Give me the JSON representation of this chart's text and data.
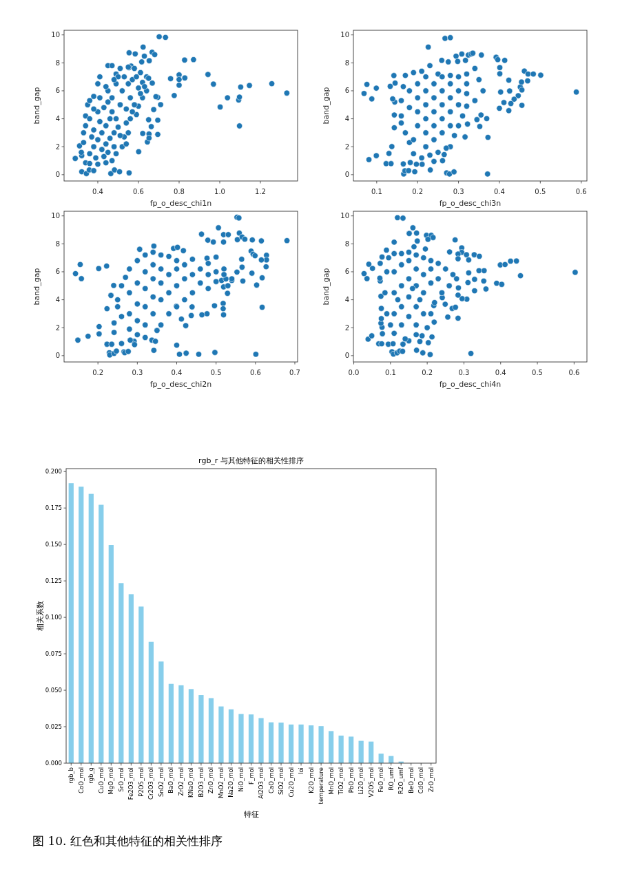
{
  "chart_data": [
    {
      "type": "scatter",
      "xlabel": "fp_o_desc_chi1n",
      "ylabel": "band_gap",
      "color": "#1f77b4",
      "marker": "circle",
      "xlim": [
        0.234,
        1.383
      ],
      "ylim": [
        -0.45,
        10.33
      ],
      "xticks": [
        0.4,
        0.6,
        0.8,
        {
          "value": 1,
          "label": "1.0"
        },
        1.2
      ],
      "yticks": [
        0,
        2,
        4,
        6,
        8,
        10
      ],
      "x": [
        0.289,
        0.31,
        0.321,
        0.319,
        0.321,
        0.344,
        0.358,
        0.38,
        0.464,
        0.482,
        0.507,
        0.554,
        0.702,
        0.733,
        0.623,
        0.554,
        0.584,
        0.629,
        0.667,
        0.68,
        0.653,
        0.616,
        0.564,
        0.553,
        0.827,
        0.871,
        0.758,
        0.8,
        0.8,
        0.8,
        0.828,
        0.776,
        0.942,
        0.969,
        1.002,
        1.038,
        1.093,
        1.097,
        1.103,
        1.097,
        1.146,
        1.256,
        1.33,
        0.601,
        0.663,
        0.644,
        0.652,
        0.652,
        0.621,
        0.695,
        0.695,
        0.675,
        0.65,
        0.668,
        0.695,
        0.709,
        0.686,
        0.34,
        0.36,
        0.4,
        0.44,
        0.47,
        0.49,
        0.52,
        0.54,
        0.53,
        0.55,
        0.33,
        0.33,
        0.34,
        0.34,
        0.35,
        0.36,
        0.38,
        0.4,
        0.41,
        0.45,
        0.47,
        0.49,
        0.51,
        0.55,
        0.58,
        0.61,
        0.64,
        0.65,
        0.64,
        0.62,
        0.6,
        0.59,
        0.56,
        0.54,
        0.36,
        0.38,
        0.4,
        0.42,
        0.44,
        0.46,
        0.38,
        0.36,
        0.4,
        0.42,
        0.44,
        0.46,
        0.48,
        0.5,
        0.39,
        0.43,
        0.45,
        0.48,
        0.37,
        0.41,
        0.43,
        0.45,
        0.38,
        0.41,
        0.47,
        0.49,
        0.51,
        0.45,
        0.47,
        0.49,
        0.51,
        0.52,
        0.53,
        0.55,
        0.56,
        0.57,
        0.58,
        0.6,
        0.62,
        0.59,
        0.54,
        0.5,
        0.48,
        0.44,
        0.57,
        0.61,
        0.63
      ],
      "values": [
        1.16,
        2.06,
        1.36,
        1.6,
        0.21,
        0.08,
        0.34,
        0.29,
        0.08,
        0.34,
        0.21,
        0.13,
        9.87,
        9.82,
        9.13,
        8.72,
        8.64,
        8.48,
        8.76,
        8.59,
        8.15,
        8.07,
        7.77,
        7.66,
        8.2,
        8.23,
        6.87,
        7.14,
        6.81,
        6.4,
        6.92,
        5.66,
        7.17,
        6.48,
        4.84,
        5.5,
        5.34,
        5.55,
        6.27,
        3.49,
        6.38,
        6.51,
        5.84,
        1.64,
        3.44,
        2.34,
        2.91,
        2.62,
        2.95,
        2.88,
        3.9,
        4.66,
        3.93,
        6.55,
        5.53,
        5.01,
        5.58,
        0.85,
        0.8,
        0.75,
        0.85,
        1.0,
        1.5,
        2.0,
        2.2,
        2.7,
        3.0,
        2.3,
        3.0,
        3.5,
        4.2,
        5.0,
        5.3,
        5.6,
        6.5,
        7.0,
        7.8,
        7.8,
        7.2,
        7.6,
        7.7,
        7.6,
        7.3,
        7.0,
        6.9,
        6.0,
        5.5,
        4.9,
        4.3,
        4.0,
        3.7,
        1.5,
        2.0,
        2.5,
        3.0,
        3.5,
        4.0,
        3.2,
        4.0,
        4.5,
        1.8,
        2.2,
        2.6,
        3.0,
        3.4,
        1.2,
        1.3,
        1.6,
        2.0,
        2.7,
        3.8,
        4.8,
        5.2,
        4.7,
        5.5,
        4.5,
        4.0,
        2.8,
        6.0,
        5.5,
        6.5,
        5.0,
        6.0,
        7.0,
        6.5,
        5.5,
        6.8,
        5.0,
        6.2,
        6.6,
        7.0,
        4.7,
        7.0,
        6.8,
        6.3,
        4.5,
        5.8,
        6.3
      ]
    },
    {
      "type": "scatter",
      "xlabel": "fp_o_desc_chi3n",
      "ylabel": "band_gap",
      "color": "#1f77b4",
      "marker": "circle",
      "xlim": [
        0.043,
        0.614
      ],
      "ylim": [
        -0.45,
        10.33
      ],
      "xticks": [
        0.1,
        0.2,
        0.3,
        0.4,
        0.5,
        0.6
      ],
      "yticks": [
        0,
        2,
        4,
        6,
        8,
        10
      ],
      "x": [
        0.069,
        0.076,
        0.088,
        0.099,
        0.081,
        0.099,
        0.123,
        0.135,
        0.13,
        0.137,
        0.133,
        0.142,
        0.145,
        0.144,
        0.139,
        0.143,
        0.143,
        0.226,
        0.267,
        0.28,
        0.259,
        0.275,
        0.294,
        0.298,
        0.308,
        0.317,
        0.324,
        0.331,
        0.335,
        0.356,
        0.392,
        0.396,
        0.413,
        0.401,
        0.401,
        0.461,
        0.47,
        0.483,
        0.501,
        0.423,
        0.425,
        0.403,
        0.451,
        0.454,
        0.469,
        0.455,
        0.446,
        0.436,
        0.428,
        0.423,
        0.411,
        0.4,
        0.455,
        0.588,
        0.371,
        0.372,
        0.369,
        0.345,
        0.352,
        0.355,
        0.322,
        0.316,
        0.231,
        0.271,
        0.278,
        0.289,
        0.166,
        0.169,
        0.178,
        0.193,
        0.165,
        0.182,
        0.197,
        0.211,
        0.261,
        0.265,
        0.24,
        0.16,
        0.16,
        0.165,
        0.17,
        0.18,
        0.17,
        0.16,
        0.19,
        0.21,
        0.23,
        0.25,
        0.28,
        0.3,
        0.32,
        0.34,
        0.35,
        0.36,
        0.34,
        0.32,
        0.31,
        0.3,
        0.29,
        0.28,
        0.19,
        0.21,
        0.23,
        0.25,
        0.27,
        0.19,
        0.2,
        0.2,
        0.2,
        0.2,
        0.22,
        0.22,
        0.22,
        0.22,
        0.22,
        0.22,
        0.24,
        0.24,
        0.24,
        0.24,
        0.24,
        0.26,
        0.26,
        0.26,
        0.26,
        0.26,
        0.28,
        0.28,
        0.28,
        0.28,
        0.3,
        0.3,
        0.32,
        0.32,
        0.18,
        0.18
      ],
      "values": [
        5.81,
        6.46,
        5.42,
        6.19,
        1.08,
        1.36,
        0.79,
        0.79,
        1.52,
        2.01,
        6.32,
        7.09,
        6.55,
        5.2,
        5.42,
        4.27,
        3.36,
        9.13,
        9.75,
        9.8,
        8.18,
        8.07,
        8.48,
        8.1,
        8.63,
        8.18,
        8.56,
        8.63,
        8.69,
        8.56,
        8.4,
        8.23,
        8.18,
        7.66,
        7.22,
        7.41,
        7.2,
        7.2,
        7.12,
        6.76,
        5.99,
        5.91,
        6.27,
        6.63,
        6.71,
        6.06,
        5.65,
        5.4,
        5.09,
        4.58,
        5.16,
        4.75,
        4.96,
        5.91,
        0.05,
        2.67,
        4.01,
        3.94,
        3.45,
        4.27,
        3.62,
        2.7,
        0.34,
        0.13,
        0.05,
        0.2,
        0.05,
        0.28,
        0.29,
        0.21,
        0.77,
        0.87,
        0.75,
        0.74,
        1.0,
        1.44,
        0.95,
        4.2,
        5.3,
        6.3,
        7.1,
        2.3,
        3.0,
        3.7,
        7.3,
        7.4,
        7.8,
        7.2,
        7.1,
        7.0,
        7.2,
        7.6,
        6.8,
        6.0,
        5.3,
        4.9,
        4.2,
        3.5,
        2.8,
        2.0,
        1.5,
        1.2,
        1.4,
        1.6,
        1.9,
        2.5,
        3.5,
        4.5,
        5.5,
        6.5,
        2.0,
        3.0,
        4.0,
        5.0,
        6.0,
        7.0,
        2.5,
        3.5,
        4.5,
        5.5,
        6.5,
        3.0,
        4.0,
        5.0,
        6.0,
        7.0,
        3.5,
        4.5,
        5.5,
        6.5,
        5.0,
        6.0,
        5.8,
        6.5,
        4.8,
        6.0
      ]
    },
    {
      "type": "scatter",
      "xlabel": "fp_o_desc_chi2n",
      "ylabel": "band_gap",
      "color": "#1f77b4",
      "marker": "circle",
      "xlim": [
        0.114,
        0.707
      ],
      "ylim": [
        -0.45,
        10.33
      ],
      "xticks": [
        0.2,
        0.3,
        0.4,
        0.5,
        0.6,
        0.7
      ],
      "yticks": [
        0,
        2,
        4,
        6,
        8,
        10
      ],
      "x": [
        0.143,
        0.155,
        0.158,
        0.149,
        0.175,
        0.202,
        0.203,
        0.203,
        0.222,
        0.223,
        0.233,
        0.223,
        0.229,
        0.23,
        0.235,
        0.241,
        0.247,
        0.26,
        0.266,
        0.268,
        0.277,
        0.241,
        0.241,
        0.24,
        0.292,
        0.282,
        0.293,
        0.342,
        0.337,
        0.346,
        0.4,
        0.407,
        0.424,
        0.456,
        0.497,
        0.601,
        0.306,
        0.342,
        0.392,
        0.402,
        0.417,
        0.463,
        0.479,
        0.493,
        0.506,
        0.519,
        0.531,
        0.519,
        0.553,
        0.558,
        0.554,
        0.559,
        0.566,
        0.573,
        0.592,
        0.615,
        0.68,
        0.589,
        0.594,
        0.599,
        0.628,
        0.628,
        0.615,
        0.565,
        0.566,
        0.627,
        0.617,
        0.603,
        0.591,
        0.568,
        0.553,
        0.617,
        0.518,
        0.518,
        0.519,
        0.529,
        0.496,
        0.477,
        0.464,
        0.439,
        0.437,
        0.423,
        0.412,
        0.399,
        0.477,
        0.5,
        0.514,
        0.519,
        0.525,
        0.54,
        0.25,
        0.26,
        0.27,
        0.28,
        0.3,
        0.32,
        0.34,
        0.36,
        0.38,
        0.4,
        0.44,
        0.48,
        0.52,
        0.54,
        0.53,
        0.48,
        0.44,
        0.42,
        0.4,
        0.38,
        0.36,
        0.35,
        0.32,
        0.3,
        0.28,
        0.26,
        0.25,
        0.28,
        0.28,
        0.3,
        0.3,
        0.3,
        0.32,
        0.32,
        0.32,
        0.32,
        0.34,
        0.34,
        0.34,
        0.34,
        0.36,
        0.36,
        0.36,
        0.38,
        0.38,
        0.4,
        0.4,
        0.42,
        0.42,
        0.44,
        0.46,
        0.46,
        0.48,
        0.5,
        0.5,
        0.52
      ],
      "values": [
        5.87,
        6.52,
        5.51,
        1.11,
        1.39,
        6.23,
        2.08,
        1.56,
        6.41,
        3.36,
        4.31,
        0.82,
        0.21,
        0.05,
        0.82,
        0.16,
        0.33,
        0.87,
        0.28,
        0.21,
        0.3,
        2.34,
        1.66,
        5.02,
        1.03,
        1.11,
        0.79,
        0.38,
        1.11,
        1.03,
        0.75,
        0.1,
        0.18,
        0.1,
        0.23,
        0.1,
        7.61,
        7.84,
        7.67,
        7.75,
        7.51,
        8.69,
        8.26,
        8.13,
        9.15,
        8.66,
        8.66,
        8.13,
        9.9,
        9.85,
        8.3,
        8.77,
        8.49,
        8.33,
        8.28,
        8.21,
        8.23,
        7.48,
        7.26,
        7.15,
        7.18,
        6.85,
        6.85,
        6.9,
        6.33,
        6.36,
        5.57,
        5.05,
        5.9,
        5.34,
        5.98,
        3.46,
        3.74,
        3.36,
        2.92,
        4.46,
        3.57,
        3.0,
        2.92,
        3.49,
        2.87,
        2.15,
        2.62,
        3.54,
        6.97,
        7.05,
        5.38,
        4.92,
        5.49,
        5.38,
        4.0,
        5.0,
        5.6,
        6.2,
        6.8,
        7.2,
        7.4,
        7.2,
        7.1,
        6.8,
        6.9,
        6.6,
        6.2,
        5.5,
        5.0,
        4.8,
        4.5,
        4.0,
        3.5,
        3.0,
        2.2,
        1.8,
        1.3,
        1.5,
        1.9,
        2.8,
        3.5,
        3.0,
        4.5,
        2.5,
        3.7,
        5.2,
        2.2,
        3.5,
        4.8,
        6.0,
        3.0,
        4.2,
        5.5,
        6.5,
        4.0,
        5.2,
        6.2,
        4.5,
        5.8,
        5.0,
        6.2,
        5.5,
        6.5,
        5.8,
        6.2,
        5.2,
        5.8,
        6.0,
        5.3,
        5.8
      ]
    },
    {
      "type": "scatter",
      "xlabel": "fp_o_desc_chi4n",
      "ylabel": "band_gap",
      "color": "#1f77b4",
      "marker": "circle",
      "xlim": [
        -0.001,
        0.635
      ],
      "ylim": [
        -0.45,
        10.33
      ],
      "xticks": [
        {
          "value": 0,
          "label": "0.0"
        },
        0.1,
        0.2,
        0.3,
        0.4,
        0.5,
        0.6
      ],
      "yticks": [
        0,
        2,
        4,
        6,
        8,
        10
      ],
      "x": [
        0.028,
        0.036,
        0.041,
        0.051,
        0.039,
        0.049,
        0.068,
        0.076,
        0.094,
        0.107,
        0.104,
        0.108,
        0.118,
        0.125,
        0.133,
        0.171,
        0.188,
        0.208,
        0.319,
        0.119,
        0.134,
        0.161,
        0.151,
        0.171,
        0.173,
        0.11,
        0.198,
        0.211,
        0.216,
        0.202,
        0.276,
        0.164,
        0.195,
        0.261,
        0.294,
        0.294,
        0.307,
        0.328,
        0.342,
        0.313,
        0.284,
        0.284,
        0.399,
        0.412,
        0.427,
        0.443,
        0.454,
        0.603,
        0.389,
        0.403,
        0.36,
        0.354,
        0.329,
        0.329,
        0.341,
        0.355,
        0.313,
        0.311,
        0.308,
        0.295,
        0.284,
        0.285,
        0.268,
        0.277,
        0.284,
        0.256,
        0.241,
        0.249,
        0.218,
        0.219,
        0.213,
        0.203,
        0.186,
        0.18,
        0.134,
        0.15,
        0.077,
        0.074,
        0.075,
        0.075,
        0.074,
        0.072,
        0.071,
        0.072,
        0.077,
        0.089,
        0.078,
        0.09,
        0.085,
        0.09,
        0.095,
        0.11,
        0.13,
        0.15,
        0.17,
        0.19,
        0.21,
        0.23,
        0.25,
        0.27,
        0.28,
        0.26,
        0.24,
        0.22,
        0.21,
        0.2,
        0.17,
        0.14,
        0.11,
        0.1,
        0.11,
        0.11,
        0.11,
        0.13,
        0.13,
        0.13,
        0.13,
        0.15,
        0.15,
        0.15,
        0.15,
        0.17,
        0.17,
        0.17,
        0.17,
        0.19,
        0.19,
        0.19,
        0.21,
        0.21,
        0.23,
        0.12,
        0.16,
        0.18
      ],
      "values": [
        5.87,
        5.51,
        6.54,
        6.24,
        1.18,
        1.42,
        0.85,
        0.85,
        0.82,
        0.85,
        0.28,
        0.11,
        0.2,
        0.33,
        0.31,
        0.39,
        0.2,
        0.08,
        0.16,
        9.87,
        9.84,
        9.15,
        8.74,
        8.77,
        8.2,
        8.12,
        8.61,
        8.61,
        8.45,
        8.32,
        8.28,
        7.79,
        7.63,
        7.42,
        7.71,
        7.39,
        7.22,
        7.22,
        7.11,
        6.85,
        7.27,
        6.93,
        6.49,
        6.52,
        6.76,
        6.77,
        5.72,
        5.96,
        5.18,
        5.1,
        4.77,
        5.34,
        5.46,
        4.64,
        6.08,
        6.08,
        5.92,
        5.23,
        4.04,
        4.08,
        4.33,
        4.85,
        3.38,
        3.46,
        2.68,
        2.76,
        4.15,
        3.68,
        3.58,
        2.4,
        1.34,
        0.93,
        1.42,
        1.01,
        0.82,
        1.06,
        2.03,
        2.32,
        2.65,
        3.38,
        4.25,
        5.34,
        5.54,
        6.6,
        7.06,
        7.55,
        1.57,
        3.0,
        4.5,
        6.0,
        7.0,
        7.3,
        7.3,
        7.4,
        7.2,
        7.0,
        6.8,
        6.6,
        6.2,
        5.8,
        5.5,
        5.0,
        4.5,
        3.8,
        3.0,
        2.0,
        1.5,
        1.2,
        1.6,
        2.2,
        3.0,
        4.5,
        6.0,
        2.2,
        3.5,
        5.0,
        6.5,
        2.8,
        4.2,
        5.5,
        6.8,
        2.2,
        3.5,
        5.0,
        6.2,
        3.0,
        4.5,
        5.8,
        5.2,
        6.2,
        5.5,
        4.0,
        4.8,
        4.0
      ]
    },
    {
      "type": "bar",
      "title": "rgb_r 与其他特征的相关性排序",
      "xlabel": "特征",
      "ylabel": "相关系数",
      "color": "#87ceeb",
      "ylim": [
        0,
        0.202
      ],
      "yticks": [
        {
          "value": 0,
          "label": "0.000"
        },
        {
          "value": 0.025,
          "label": "0.025"
        },
        {
          "value": 0.05,
          "label": "0.050"
        },
        {
          "value": 0.075,
          "label": "0.075"
        },
        {
          "value": 0.1,
          "label": "0.100"
        },
        {
          "value": 0.125,
          "label": "0.125"
        },
        {
          "value": 0.15,
          "label": "0.150"
        },
        {
          "value": 0.175,
          "label": "0.175"
        },
        {
          "value": 0.2,
          "label": "0.200"
        }
      ],
      "categories": [
        "rgb_b",
        "CoO_mol",
        "rgb_g",
        "CuO_mol",
        "MgO_mol",
        "SrO_mol",
        "Fe2O3_mol",
        "P2O5_mol",
        "Cr2O3_mol",
        "SnO2_mol",
        "BaO_mol",
        "ZrO2_mol",
        "KNaO_mol",
        "B2O3_mol",
        "ZnO_mol",
        "MnO2_mol",
        "Na2O_mol",
        "NiO_mol",
        "F_mol",
        "Al2O3_mol",
        "CaO_mol",
        "SiO2_mol",
        "Cu2O_mol",
        "loi",
        "K2O_mol",
        "temperature",
        "MnO_mol",
        "TiO2_mol",
        "PbO_mol",
        "Li2O_mol",
        "V2O5_mol",
        "FeO_mol",
        "RO_umf",
        "R2O_umf",
        "BeO_mol",
        "CdO_mol",
        "ZrO_mol"
      ],
      "values": [
        0.192,
        0.1896,
        0.1847,
        0.1772,
        0.1496,
        0.1235,
        0.1159,
        0.1074,
        0.0832,
        0.0697,
        0.0544,
        0.0534,
        0.0508,
        0.0467,
        0.0446,
        0.0389,
        0.0369,
        0.0337,
        0.0334,
        0.0309,
        0.028,
        0.0278,
        0.0265,
        0.0265,
        0.0259,
        0.0254,
        0.022,
        0.0189,
        0.0182,
        0.0153,
        0.0148,
        0.0065,
        0.0049,
        0.0011,
        0,
        0,
        0
      ],
      "annotations": [
        "图 10. 红色和其他特征的相关性排序"
      ]
    }
  ]
}
